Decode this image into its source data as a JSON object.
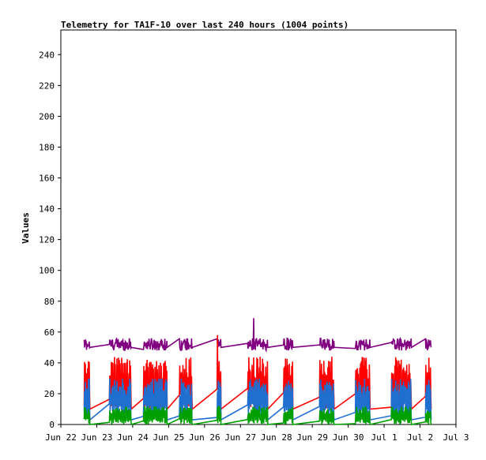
{
  "chart_data": {
    "type": "line",
    "title": "Telemetry for TA1F-10 over last 240 hours (1004 points)",
    "ylabel": "Values",
    "xlabel": "",
    "ylim": [
      0,
      256
    ],
    "y_ticks": [
      0,
      20,
      40,
      60,
      80,
      100,
      120,
      140,
      160,
      180,
      200,
      220,
      240
    ],
    "xlim_days": [
      0,
      11
    ],
    "x_ticks": [
      {
        "day": 0,
        "label": "Jun 22"
      },
      {
        "day": 1,
        "label": "Jun 23"
      },
      {
        "day": 2,
        "label": "Jun 24"
      },
      {
        "day": 3,
        "label": "Jun 25"
      },
      {
        "day": 4,
        "label": "Jun 26"
      },
      {
        "day": 5,
        "label": "Jun 27"
      },
      {
        "day": 6,
        "label": "Jun 28"
      },
      {
        "day": 7,
        "label": "Jun 29"
      },
      {
        "day": 8,
        "label": "Jun 30"
      },
      {
        "day": 9,
        "label": "Jul 1"
      },
      {
        "day": 10,
        "label": "Jul 2"
      },
      {
        "day": 11,
        "label": "Jul 3"
      }
    ],
    "legend": "none",
    "grid": false,
    "clusters": [
      {
        "start": 0.65,
        "end": 0.8
      },
      {
        "start": 1.35,
        "end": 1.95
      },
      {
        "start": 2.3,
        "end": 2.95
      },
      {
        "start": 3.3,
        "end": 3.65
      },
      {
        "start": 4.35,
        "end": 4.45
      },
      {
        "start": 5.2,
        "end": 5.75
      },
      {
        "start": 6.2,
        "end": 6.45
      },
      {
        "start": 7.2,
        "end": 7.6
      },
      {
        "start": 8.2,
        "end": 8.6
      },
      {
        "start": 9.2,
        "end": 9.75
      },
      {
        "start": 10.15,
        "end": 10.3
      }
    ],
    "series": [
      {
        "color": "#800080",
        "low": 48,
        "high": 56,
        "spike": 69,
        "gap_value": 50
      },
      {
        "color": "#ff0000",
        "low": 10,
        "high": 44,
        "spike": 58,
        "gap_value": 10
      },
      {
        "color": "#1f6fd1",
        "low": 3,
        "high": 30,
        "spike": 30,
        "gap_value": 3
      },
      {
        "color": "#00a000",
        "low": 0,
        "high": 12,
        "spike": 16,
        "gap_value": 0
      }
    ]
  }
}
